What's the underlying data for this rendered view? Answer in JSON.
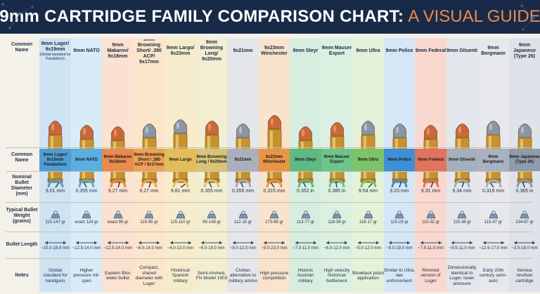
{
  "header": {
    "title_main": "9mm CARTRIDGE FAMILY COMPARISON CHART:",
    "title_accent": "A VISUAL GUIDE",
    "bg_color": "#182a47",
    "accent_color": "#e98c4d"
  },
  "row_labels": {
    "common_name_top": "Common Name",
    "common_name": "Common Name",
    "diameter": "Nominal Bullet Diameter (mm)",
    "weight": "Typical Bullet Weight (grains)",
    "length": "Bullet Length",
    "notes": "Notes"
  },
  "cartridges": [
    {
      "name": "9mm Luger/ 9x19mm",
      "subnote": "(Global standard for Parabellum)",
      "band": "9mm Luger/ 9x19mm Parabellum",
      "diameter": "9.01 mm",
      "weight": "115-147 gr",
      "length": "~15.0-18.0 mm",
      "notes": "Global standard for handguns",
      "color": "#cfe4f3",
      "band_color": "#4f9ed6",
      "tip": "copper",
      "gauge": 0.7
    },
    {
      "name": "9mm NATO",
      "subnote": "",
      "band": "9mm NATO",
      "diameter": "0.355 mm",
      "weight": "exact 124 gr",
      "length": "~12.5-14.0 mm",
      "notes": "Higher pressure mil-spec",
      "color": "#d9ebf6",
      "band_color": "#5aaee0",
      "tip": "copper",
      "gauge": 0.35
    },
    {
      "name": "9mm Makarov/ 9x18mm",
      "subnote": "",
      "band": "9mm Makarov 9x18mm",
      "diameter": "9.27 mm",
      "weight": "exact 95 gr",
      "length": "~12.5-14.0 mm",
      "notes": "Eastern Bloc wider bullet",
      "color": "#fbe1cf",
      "band_color": "#e98a4e",
      "tip": "copper",
      "gauge": 0.6
    },
    {
      "name": "9mm Browning Short/ .380 ACP/ 9x17mm",
      "subnote": "",
      "band": "9mm Browning Short / .380 ACP / 9x17mm",
      "diameter": "9.27 mm",
      "weight": "115-95 gr",
      "length": "~8.0-14.0 mm",
      "notes": "Compact, shared diameter with Luger",
      "color": "#fbe6cc",
      "band_color": "#eca255",
      "tip": "steel",
      "gauge": 0.6
    },
    {
      "name": "9mm Largo/ 9x23mm",
      "subnote": "",
      "band": "9mm Largo",
      "diameter": "9.81 mm",
      "weight": "115-110 gr",
      "length": "~4.0-13.0 mm",
      "notes": "Historical Spanish military",
      "color": "#f6eccc",
      "band_color": "#e2bd5a",
      "tip": "steel",
      "gauge": 0.8
    },
    {
      "name": "9mm Browning Long/ 9x20mm",
      "subnote": "",
      "band": "9mm Browning Long / 9x20mm",
      "diameter": "0.355 mm",
      "weight": "95-148 gr",
      "length": "~6.0-19.0 mm",
      "notes": "Semi-rimmed, FN Model 1903",
      "color": "#f3eed2",
      "band_color": "#d8c479",
      "tip": "copper",
      "gauge": 0.35
    },
    {
      "name": "9x21mm",
      "subnote": "",
      "band": "9x21mm",
      "diameter": "0.355 mm",
      "weight": "112-15 gr",
      "length": "~9.0-12.0 mm",
      "notes": "Civilian alternative to military ammo",
      "color": "#e4e6ea",
      "band_color": "#a9b0bb",
      "tip": "steel",
      "gauge": 0.35
    },
    {
      "name": "9x23mm Winchester",
      "subnote": "",
      "band": "9x23mm Winchester",
      "diameter": "0.315 mm",
      "weight": "173-95 gr",
      "length": "~9.0-23.0 mm",
      "notes": "High pressure competition",
      "color": "#f9e3cc",
      "band_color": "#e79547",
      "tip": "copper",
      "gauge": 0.3
    },
    {
      "name": "9mm Steyr",
      "subnote": "",
      "band": "9mm Steyr",
      "diameter": "0.352 in",
      "weight": "113-77 gr",
      "length": "~7.0-11.0 mm",
      "notes": "Historic Austrian military",
      "color": "#d6eedf",
      "band_color": "#5fb982",
      "tip": "copper",
      "gauge": 0.35
    },
    {
      "name": "9mm Mauser Export",
      "subnote": "",
      "band": "9mm Mauser Export",
      "diameter": "0.385 in",
      "weight": "118-39 gr",
      "length": "~6.0-12.0 mm",
      "notes": "High velocity historical bottleneck",
      "color": "#dcf0e2",
      "band_color": "#6ec58b",
      "tip": "copper",
      "gauge": 0.45
    },
    {
      "name": "9mm Ultra",
      "subnote": "",
      "band": "9mm Ultra",
      "diameter": "9.54 mm",
      "weight": "116-17 gr",
      "length": "~5.0-12.0 mm",
      "notes": "Blowback pistol application",
      "color": "#e3f2d9",
      "band_color": "#7cc36a",
      "tip": "steel",
      "gauge": 0.75
    },
    {
      "name": "9mm Police",
      "subnote": "",
      "band": "9mm Police",
      "diameter": "9.23 mm",
      "weight": "115-23 gr",
      "length": "~9.0-19.0 mm",
      "notes": "Similar to Ultra, law enforcement",
      "color": "#d5e7f6",
      "band_color": "#3e8fd6",
      "tip": "steel",
      "gauge": 0.6
    },
    {
      "name": "9mm Federal",
      "subnote": "",
      "band": "9mm Federal",
      "diameter": "9.31 mm",
      "weight": "110-32 gr",
      "length": "~7.5-11.0 mm",
      "notes": "Rimmed version of Luger",
      "color": "#f9d8d0",
      "band_color": "#e2735e",
      "tip": "copper",
      "gauge": 0.62
    },
    {
      "name": "9mm Glisenti",
      "subnote": "",
      "band": "9mm Glisenti",
      "diameter": "9.34 mm",
      "weight": "115-38 gr",
      "length": "~9.5-11.0 mm",
      "notes": "Dimensionally identical to Luger, lower pressure",
      "color": "#e3e6eb",
      "band_color": "#a6afbd",
      "tip": "copper",
      "gauge": 0.62
    },
    {
      "name": "9mm Bergmann",
      "subnote": "",
      "band": "9mm Bergmann",
      "diameter": "0.319 mm",
      "weight": "115-97 gr",
      "length": "~12.5-17.0 mm",
      "notes": "Early 20th century semi-auto",
      "color": "#e6e8ec",
      "band_color": "#aab2bf",
      "tip": "steel",
      "gauge": 0.3
    },
    {
      "name": "9mm Japanese (Type 26)",
      "subnote": "",
      "band": "9mm Japanese (Type 26)",
      "diameter": "0.365 in",
      "weight": "134-87 gr",
      "length": "~3.5-18.0 mm",
      "notes": "Service revolver cartridge",
      "color": "#dfe2e8",
      "band_color": "#8f9aab",
      "tip": "steel",
      "gauge": 0.4
    }
  ]
}
